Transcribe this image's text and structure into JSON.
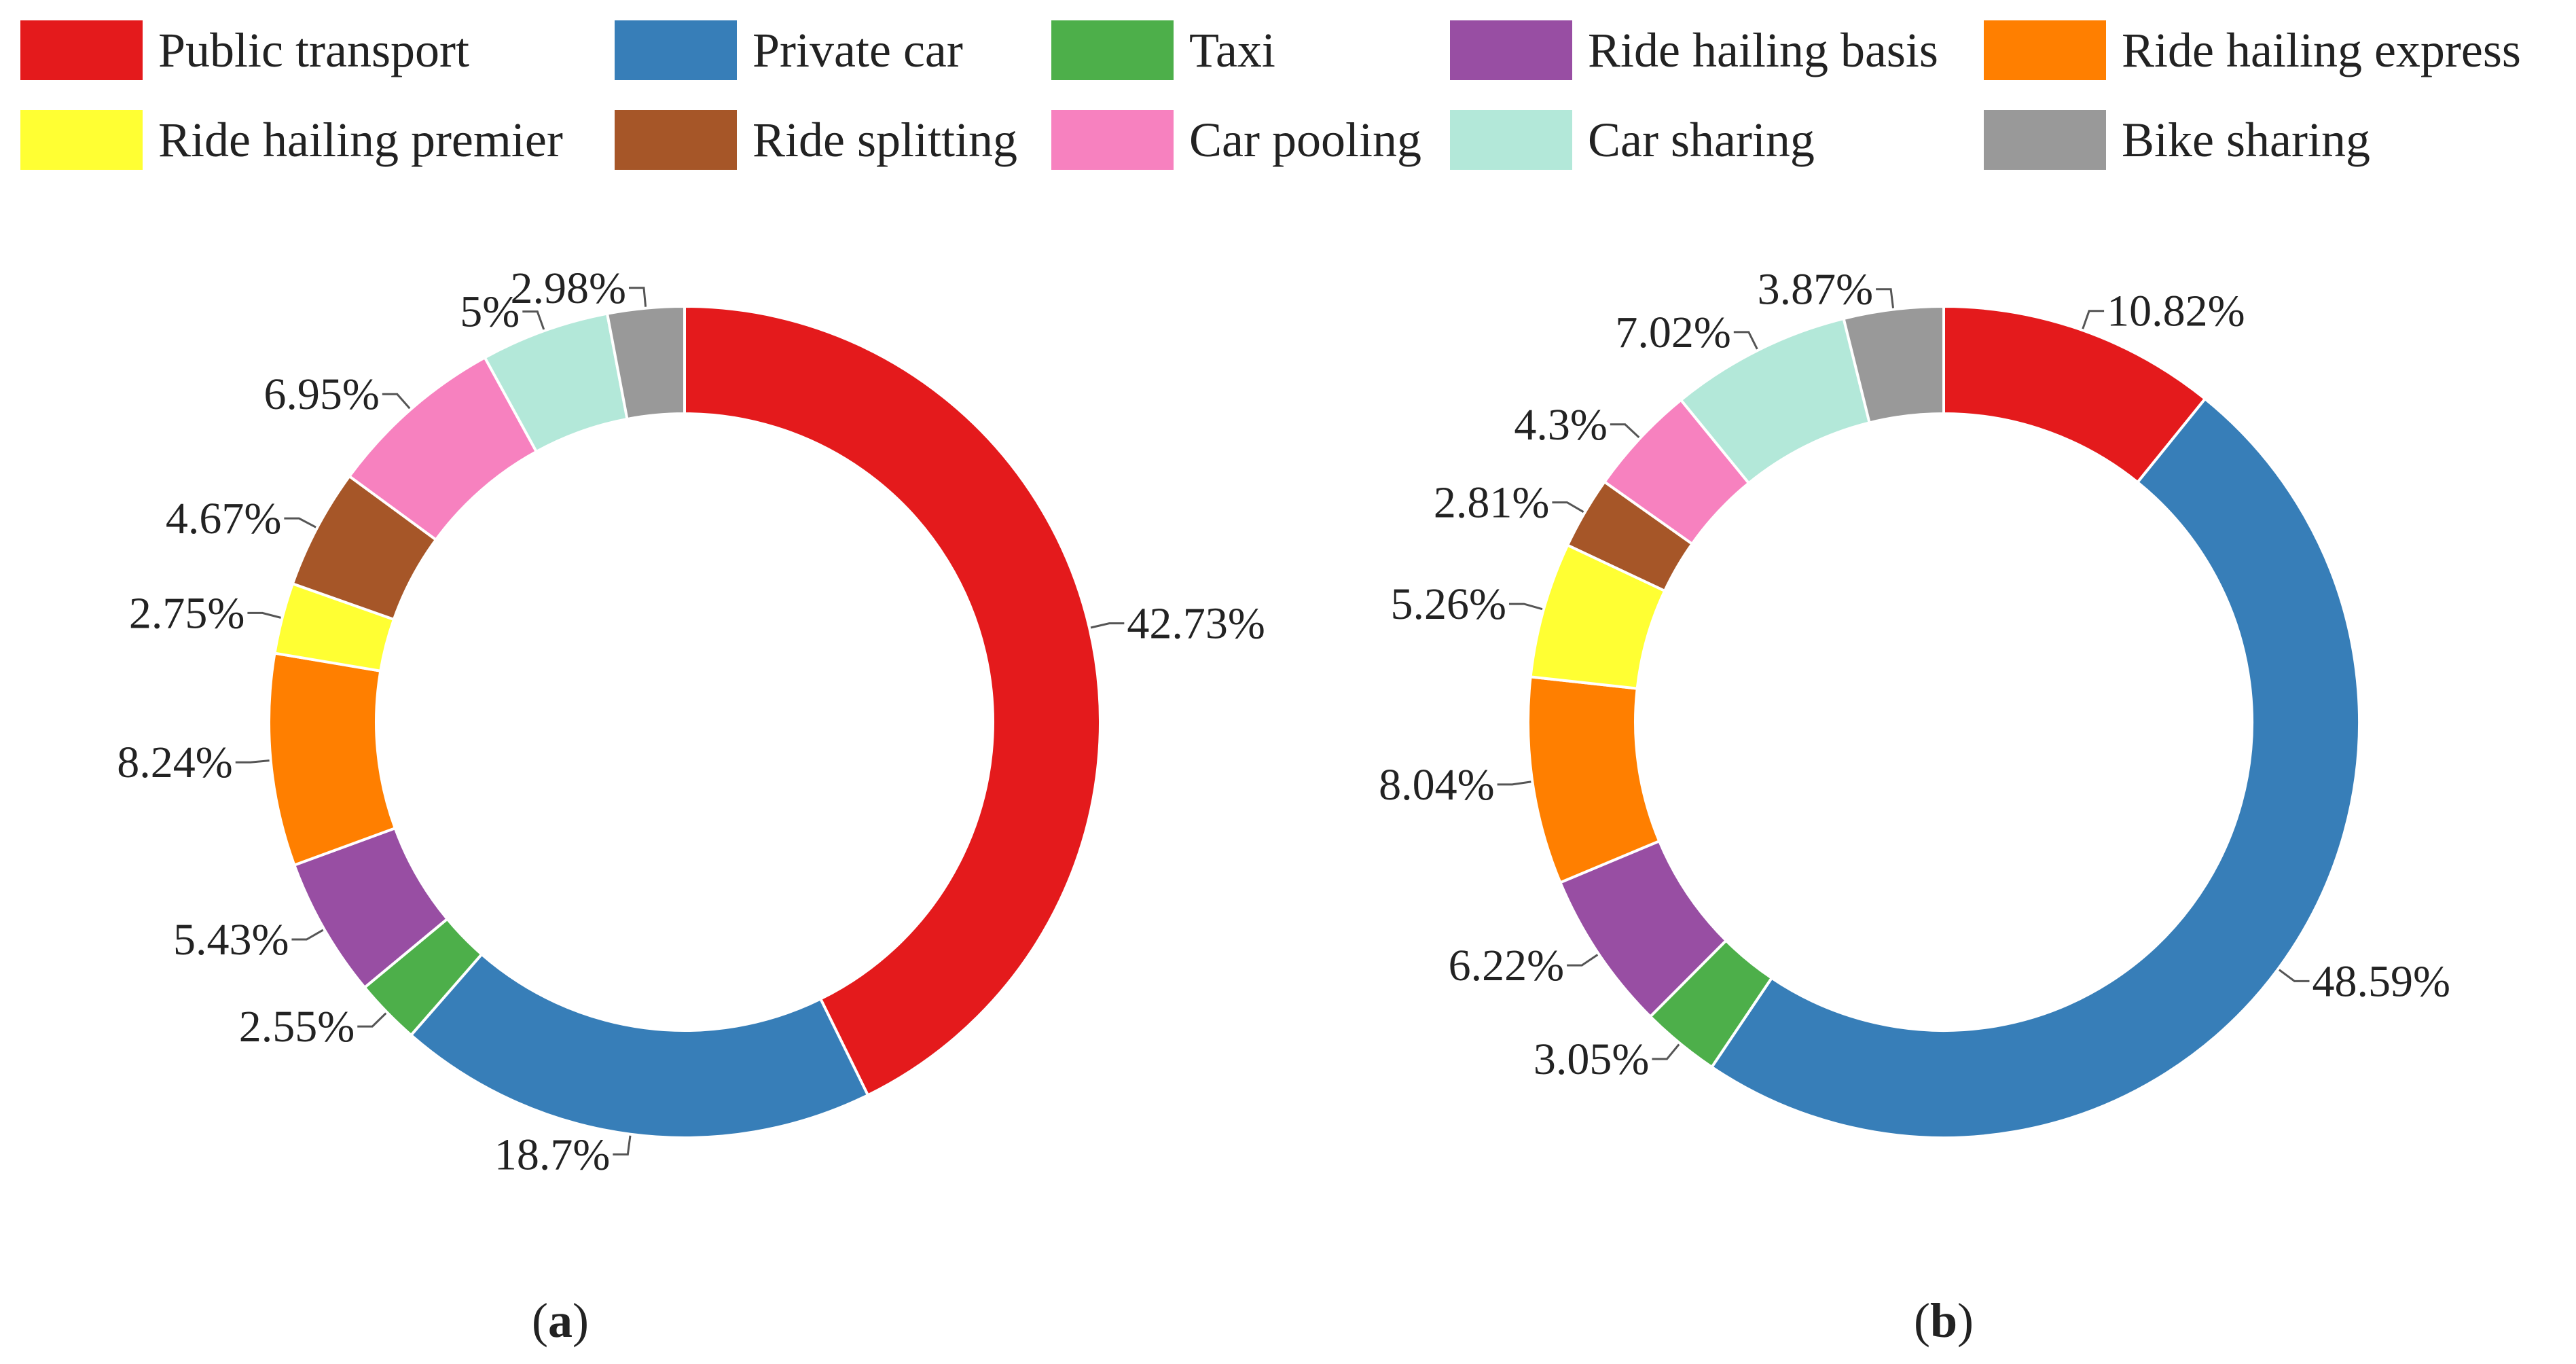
{
  "legend": [
    {
      "label": "Public transport",
      "color": "#e41a1c"
    },
    {
      "label": "Private car",
      "color": "#377eb8"
    },
    {
      "label": "Taxi",
      "color": "#4daf4a"
    },
    {
      "label": "Ride hailing basis",
      "color": "#984ea3"
    },
    {
      "label": "Ride hailing express",
      "color": "#ff7f00"
    },
    {
      "label": "Ride hailing premier",
      "color": "#ffff33"
    },
    {
      "label": "Ride splitting",
      "color": "#a65628"
    },
    {
      "label": "Car pooling",
      "color": "#f781bf"
    },
    {
      "label": "Car sharing",
      "color": "#b3e8d9"
    },
    {
      "label": "Bike sharing",
      "color": "#999999"
    }
  ],
  "chart_data": [
    {
      "type": "pie",
      "subtype": "donut",
      "panel": "a",
      "categories": [
        "Public transport",
        "Private car",
        "Taxi",
        "Ride hailing basis",
        "Ride hailing express",
        "Ride hailing premier",
        "Ride splitting",
        "Car pooling",
        "Car sharing",
        "Bike sharing"
      ],
      "values": [
        42.73,
        18.7,
        2.55,
        5.43,
        8.24,
        2.75,
        4.67,
        6.95,
        5.0,
        2.98
      ],
      "labels": [
        "42.73%",
        "18.7%",
        "2.55%",
        "5.43%",
        "8.24%",
        "2.75%",
        "4.67%",
        "6.95%",
        "5%",
        "2.98%"
      ]
    },
    {
      "type": "pie",
      "subtype": "donut",
      "panel": "b",
      "categories": [
        "Public transport",
        "Private car",
        "Taxi",
        "Ride hailing basis",
        "Ride hailing express",
        "Ride hailing premier",
        "Ride splitting",
        "Car pooling",
        "Car sharing",
        "Bike sharing"
      ],
      "values": [
        10.82,
        48.59,
        3.05,
        6.22,
        8.04,
        5.26,
        2.81,
        4.3,
        7.02,
        3.87
      ],
      "labels": [
        "10.82%",
        "48.59%",
        "3.05%",
        "6.22%",
        "8.04%",
        "5.26%",
        "2.81%",
        "4.3%",
        "7.02%",
        "3.87%"
      ]
    }
  ],
  "panels": [
    {
      "open": "(",
      "letter": "a",
      "close": ")"
    },
    {
      "open": "(",
      "letter": "b",
      "close": ")"
    }
  ]
}
